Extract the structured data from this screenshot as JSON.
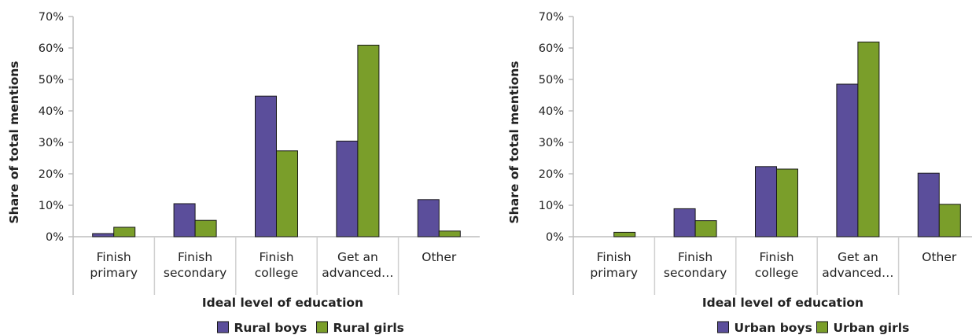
{
  "chart_data": [
    {
      "type": "bar",
      "categories": [
        [
          "Finish",
          "primary"
        ],
        [
          "Finish",
          "secondary"
        ],
        [
          "Finish",
          "college"
        ],
        [
          "Get an",
          "advanced…"
        ],
        [
          "Other"
        ]
      ],
      "series": [
        {
          "name": "Rural boys",
          "color": "#5b4e9b",
          "values": [
            1,
            10.5,
            44.7,
            30.4,
            11.8
          ]
        },
        {
          "name": "Rural girls",
          "color": "#7a9e2a",
          "values": [
            3,
            5.2,
            27.3,
            60.9,
            1.8
          ]
        }
      ],
      "xlabel": "Ideal level of education",
      "ylabel": "Share of total mentions",
      "ylim": [
        0,
        70
      ],
      "yticks": [
        "0%",
        "10%",
        "20%",
        "30%",
        "40%",
        "50%",
        "60%",
        "70%"
      ],
      "legend": "bottom-center"
    },
    {
      "type": "bar",
      "categories": [
        [
          "Finish",
          "primary"
        ],
        [
          "Finish",
          "secondary"
        ],
        [
          "Finish",
          "college"
        ],
        [
          "Get an",
          "advanced…"
        ],
        [
          "Other"
        ]
      ],
      "series": [
        {
          "name": "Urban boys",
          "color": "#5b4e9b",
          "values": [
            0,
            8.9,
            22.3,
            48.5,
            20.2
          ]
        },
        {
          "name": "Urban girls",
          "color": "#7a9e2a",
          "values": [
            1.4,
            5.1,
            21.5,
            61.9,
            10.3
          ]
        }
      ],
      "xlabel": "Ideal level of education",
      "ylabel": "Share of total mentions",
      "ylim": [
        0,
        70
      ],
      "yticks": [
        "0%",
        "10%",
        "20%",
        "30%",
        "40%",
        "50%",
        "60%",
        "70%"
      ],
      "legend": "bottom-center"
    }
  ]
}
